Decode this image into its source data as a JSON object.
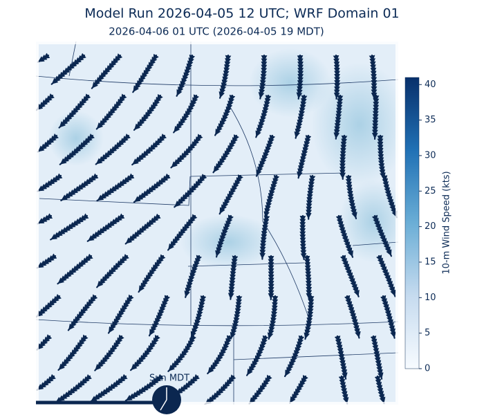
{
  "title": "Model Run 2026-04-05 12 UTC; WRF Domain 01",
  "subtitle": "2026-04-06 01 UTC  (2026-04-05 19 MDT)",
  "colorbar": {
    "label": "10-m Wind Speed (kts)",
    "lim": [
      0,
      41
    ],
    "ticks": [
      0,
      5,
      10,
      15,
      20,
      25,
      30,
      35,
      40
    ]
  },
  "timeline": {
    "label": "Sun MDT"
  }
}
